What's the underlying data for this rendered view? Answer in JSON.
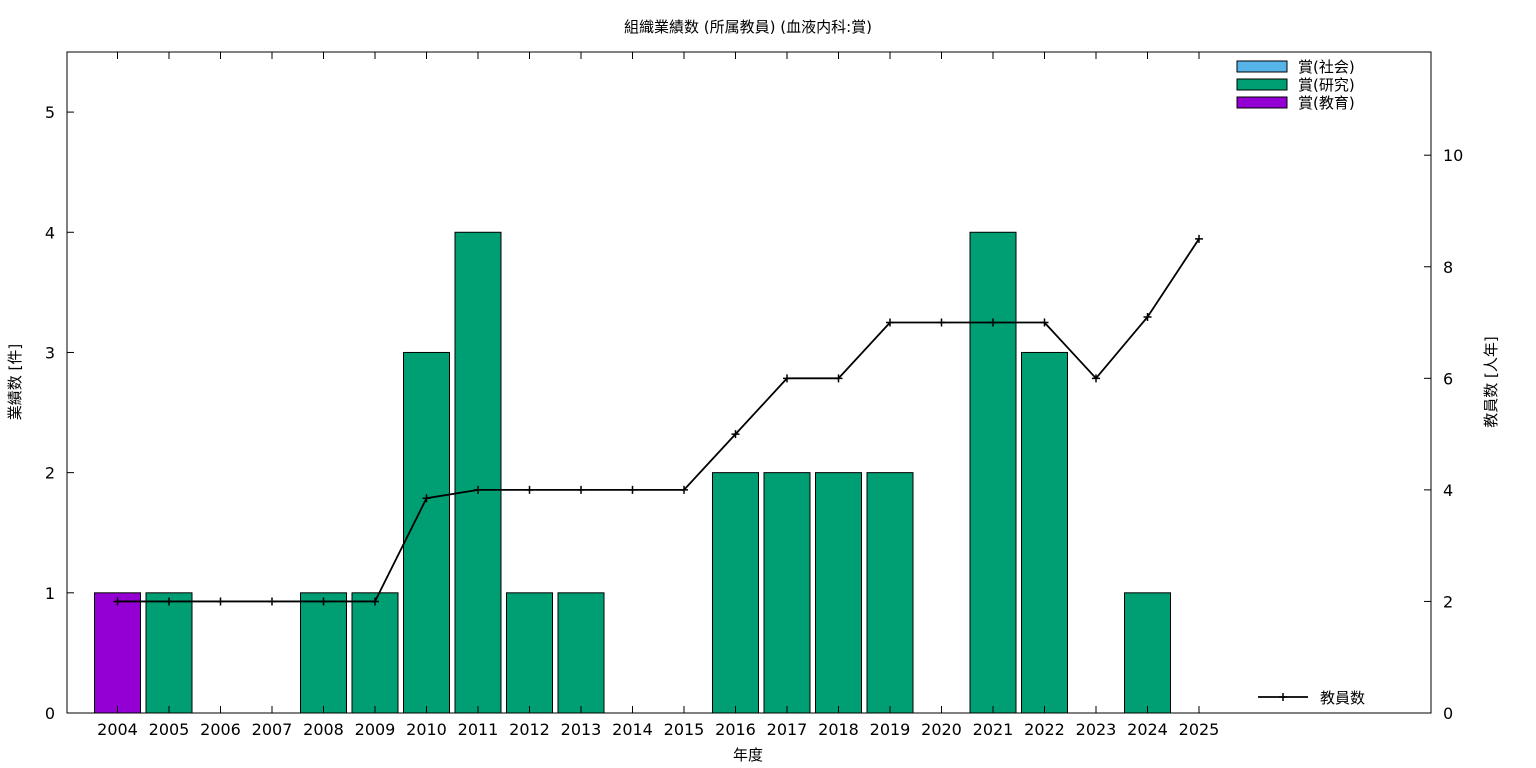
{
  "chart_data": {
    "type": "bar",
    "title": "組織業績数 (所属教員) (血液内科:賞)",
    "xlabel": "年度",
    "ylabel": "業績数 [件]",
    "y2label": "教員数 [人年]",
    "categories": [
      "2004",
      "2005",
      "2006",
      "2007",
      "2008",
      "2009",
      "2010",
      "2011",
      "2012",
      "2013",
      "2014",
      "2015",
      "2016",
      "2017",
      "2018",
      "2019",
      "2020",
      "2021",
      "2022",
      "2023",
      "2024",
      "2025"
    ],
    "ylim": [
      0,
      5.5
    ],
    "yticks": [
      "0",
      "1",
      "2",
      "3",
      "4",
      "5"
    ],
    "y2lim": [
      0,
      11.85
    ],
    "y2ticks": [
      "0",
      "2",
      "4",
      "6",
      "8",
      "10"
    ],
    "legend_position": "top-right",
    "series": [
      {
        "name": "賞(社会)",
        "color": "#56b4e9",
        "values": [
          0,
          0,
          0,
          0,
          0,
          0,
          0,
          0,
          0,
          0,
          0,
          0,
          0,
          0,
          0,
          0,
          0,
          0,
          0,
          0,
          0,
          0
        ]
      },
      {
        "name": "賞(研究)",
        "color": "#009e73",
        "values": [
          0,
          1,
          0,
          0,
          1,
          1,
          3,
          4,
          1,
          1,
          0,
          0,
          2,
          2,
          2,
          2,
          0,
          4,
          3,
          0,
          1,
          0
        ]
      },
      {
        "name": "賞(教育)",
        "color": "#9400d3",
        "values": [
          1,
          0,
          0,
          0,
          0,
          0,
          0,
          0,
          0,
          0,
          0,
          0,
          0,
          0,
          0,
          0,
          0,
          0,
          0,
          0,
          0,
          0
        ]
      }
    ],
    "line_series": {
      "name": "教員数",
      "axis": "y2",
      "color": "#000000",
      "values": [
        2,
        2,
        2,
        2,
        2,
        2,
        3.85,
        4,
        4,
        4,
        4,
        4,
        5,
        6,
        6,
        7,
        7,
        7,
        7,
        6,
        7.1,
        8.5
      ]
    },
    "grid": false
  }
}
